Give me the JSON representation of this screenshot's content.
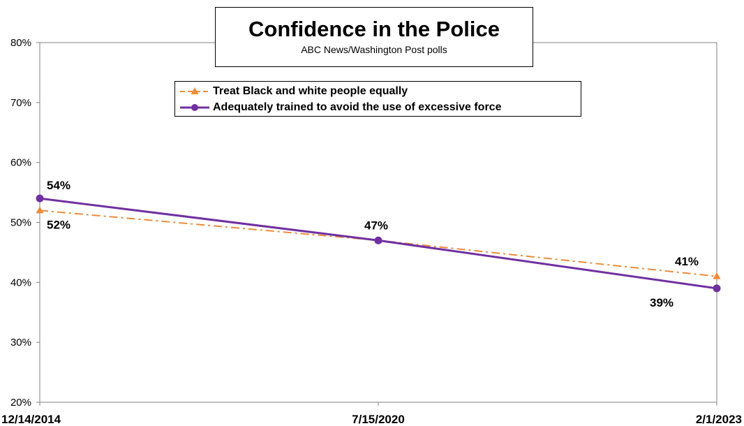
{
  "chart_data": {
    "type": "line",
    "title": "Confidence in the Police",
    "subtitle": "ABC News/Washington Post polls",
    "x": [
      "12/14/2014",
      "7/15/2020",
      "2/1/2023"
    ],
    "ylim": [
      20,
      80
    ],
    "yticks": [
      "20%",
      "30%",
      "40%",
      "50%",
      "60%",
      "70%",
      "80%"
    ],
    "grid": false,
    "legend_position": "top-center",
    "series": [
      {
        "name": "Treat Black and white people equally",
        "values": [
          52,
          47,
          41
        ],
        "labels": [
          "52%",
          "",
          "41%"
        ],
        "color": "#ED8B3A",
        "marker": "triangle",
        "line_style": "dash-dot"
      },
      {
        "name": "Adequately trained to avoid the use of excessive force",
        "values": [
          54,
          47,
          39
        ],
        "labels": [
          "54%",
          "47%",
          "39%"
        ],
        "color": "#7030A0",
        "marker": "circle",
        "line_style": "solid"
      }
    ]
  }
}
